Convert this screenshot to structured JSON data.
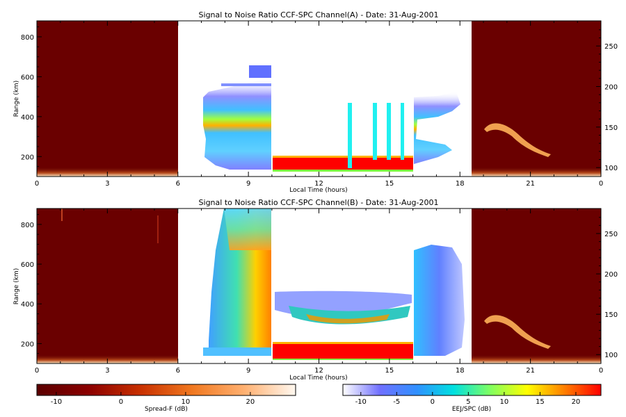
{
  "panels": [
    {
      "title": "Signal to Noise Ratio CCF-SPC Channel(A) - Date: 31-Aug-2001",
      "xlabel": "Local Time (hours)",
      "ylabel": "Range (km)",
      "x_ticks": [
        "0",
        "3",
        "6",
        "9",
        "12",
        "15",
        "18",
        "21",
        "0"
      ],
      "y_ticks": [
        "200",
        "400",
        "600",
        "800"
      ],
      "y2_ticks": [
        "100",
        "150",
        "200",
        "250"
      ]
    },
    {
      "title": "Signal to Noise Ratio CCF-SPC Channel(B) - Date: 31-Aug-2001",
      "xlabel": "Local Time (hours)",
      "ylabel": "Range (km)",
      "x_ticks": [
        "0",
        "3",
        "6",
        "9",
        "12",
        "15",
        "18",
        "21",
        "0"
      ],
      "y_ticks": [
        "200",
        "400",
        "600",
        "800"
      ],
      "y2_ticks": [
        "100",
        "150",
        "200",
        "250"
      ]
    }
  ],
  "colorbars": [
    {
      "label": "Spread-F (dB)",
      "ticks": [
        "-10",
        "0",
        "10",
        "20"
      ],
      "tick_values": [
        -10,
        0,
        10,
        20
      ],
      "range": [
        -13,
        27
      ],
      "colors": [
        "#5a0000",
        "#8b0000",
        "#c83000",
        "#f07820",
        "#ffb070",
        "#fff8f0"
      ]
    },
    {
      "label": "EEJ/SPC (dB)",
      "ticks": [
        "-10",
        "-5",
        "0",
        "5",
        "10",
        "15",
        "20"
      ],
      "tick_values": [
        -10,
        -5,
        0,
        5,
        10,
        15,
        20
      ],
      "range": [
        -12.5,
        23.5
      ],
      "colors": [
        "#ffffff",
        "#7070ff",
        "#3090ff",
        "#00e0e0",
        "#80ff60",
        "#ffff00",
        "#ff8000",
        "#ff0000"
      ]
    }
  ],
  "chart_data": [
    {
      "type": "heatmap",
      "title": "Signal to Noise Ratio CCF-SPC Channel(A) - Date: 31-Aug-2001",
      "xlabel": "Local Time (hours)",
      "ylabel": "Range (km)",
      "xlim": [
        0,
        24
      ],
      "ylim": [
        100,
        880
      ],
      "y2lim": [
        89,
        281
      ],
      "grid": false,
      "night_blocks_hours": [
        [
          0,
          6
        ],
        [
          18.5,
          24
        ]
      ],
      "day_blocks_hours": [
        [
          6,
          10
        ],
        [
          10,
          16
        ],
        [
          16,
          18.5
        ]
      ]
    },
    {
      "type": "heatmap",
      "title": "Signal to Noise Ratio CCF-SPC Channel(B) - Date: 31-Aug-2001",
      "xlabel": "Local Time (hours)",
      "ylabel": "Range (km)",
      "xlim": [
        0,
        24
      ],
      "ylim": [
        100,
        880
      ],
      "y2lim": [
        89,
        281
      ],
      "grid": false,
      "night_blocks_hours": [
        [
          0,
          6
        ],
        [
          18.5,
          24
        ]
      ],
      "day_blocks_hours": [
        [
          6,
          10
        ],
        [
          10,
          16
        ],
        [
          16,
          18.5
        ]
      ]
    }
  ]
}
